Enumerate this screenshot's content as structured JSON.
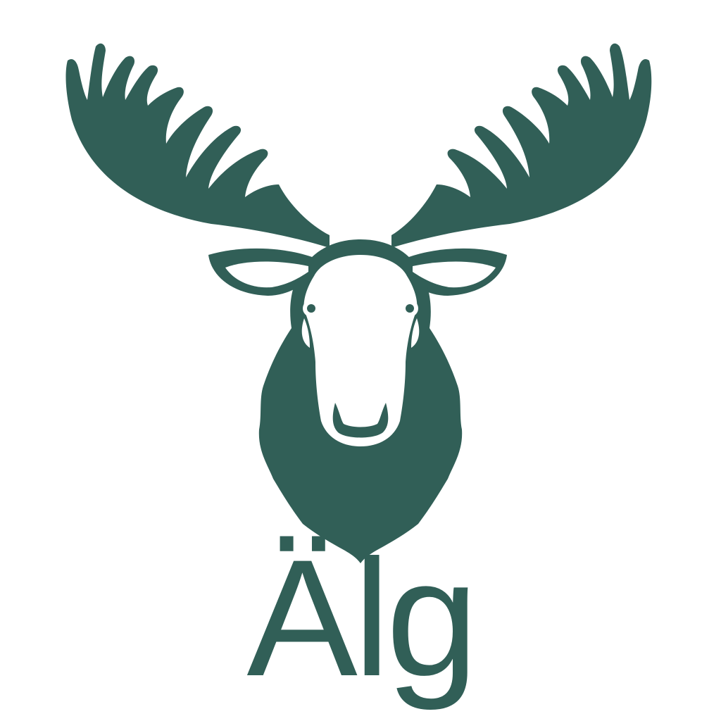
{
  "logo": {
    "icon": "moose-head-icon",
    "wordmark": "Älg",
    "colors": {
      "brand": "#315F57",
      "background": "#FFFFFF"
    }
  }
}
